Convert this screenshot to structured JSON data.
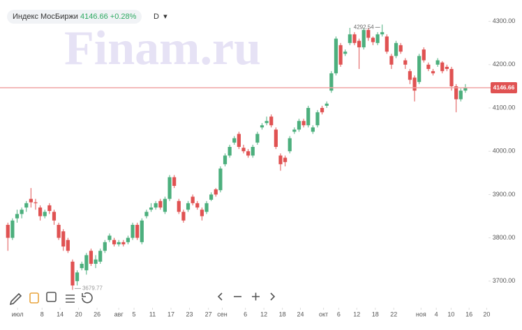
{
  "chart_data": {
    "type": "candlestick",
    "title": "Индекс МосБиржи",
    "change": "+0.28%",
    "interval": "D",
    "watermark": "Finam.ru",
    "up_color": "#4caf7d",
    "down_color": "#e05252",
    "last_line_color": "#f1a3a3",
    "ylim": [
      3645,
      4330
    ],
    "yticks": [
      {
        "value": 3700,
        "label": "3700.00"
      },
      {
        "value": 3800,
        "label": "3800.00"
      },
      {
        "value": 3900,
        "label": "3900.00"
      },
      {
        "value": 4000,
        "label": "4000.00"
      },
      {
        "value": 4100,
        "label": "4100.00"
      },
      {
        "value": 4200,
        "label": "4200.00"
      },
      {
        "value": 4300,
        "label": "4300.00"
      }
    ],
    "xlim": [
      -1.7,
      104
    ],
    "xticks": [
      {
        "value": 2.1,
        "label": "июл"
      },
      {
        "value": 7.4,
        "label": "8"
      },
      {
        "value": 11.3,
        "label": "14"
      },
      {
        "value": 15.3,
        "label": "20"
      },
      {
        "value": 19.3,
        "label": "26"
      },
      {
        "value": 24,
        "label": "авг"
      },
      {
        "value": 27.3,
        "label": "5"
      },
      {
        "value": 31.3,
        "label": "11"
      },
      {
        "value": 35.3,
        "label": "17"
      },
      {
        "value": 39.3,
        "label": "23"
      },
      {
        "value": 43.4,
        "label": "27"
      },
      {
        "value": 46.4,
        "label": "сен"
      },
      {
        "value": 51.4,
        "label": "6"
      },
      {
        "value": 55.4,
        "label": "12"
      },
      {
        "value": 59.4,
        "label": "18"
      },
      {
        "value": 63.3,
        "label": "24"
      },
      {
        "value": 68.3,
        "label": "окт"
      },
      {
        "value": 71.6,
        "label": "6"
      },
      {
        "value": 75.5,
        "label": "12"
      },
      {
        "value": 79.5,
        "label": "18"
      },
      {
        "value": 83.5,
        "label": "22"
      },
      {
        "value": 89.4,
        "label": "ноя"
      },
      {
        "value": 92.7,
        "label": "4"
      },
      {
        "value": 95.9,
        "label": "10"
      },
      {
        "value": 99.8,
        "label": "16"
      },
      {
        "value": 103.6,
        "label": "20"
      }
    ],
    "open": [
      3830,
      3800,
      3845,
      3855,
      3870,
      3890,
      3882,
      3870,
      3850,
      3875,
      3860,
      3830,
      3815,
      3795,
      3745,
      3700,
      3730,
      3725,
      3770,
      3740,
      3745,
      3770,
      3795,
      3795,
      3785,
      3790,
      3790,
      3800,
      3830,
      3790,
      3850,
      3865,
      3870,
      3885,
      3860,
      3890,
      3940,
      3885,
      3860,
      3865,
      3895,
      3880,
      3865,
      3860,
      3888,
      3912,
      3910,
      3970,
      3990,
      4020,
      4040,
      4008,
      4000,
      3990,
      4020,
      4055,
      4065,
      4080,
      4050,
      3990,
      3985,
      4000,
      4045,
      4050,
      4070,
      4060,
      4045,
      4060,
      4100,
      4105,
      4140,
      4180,
      4245,
      4225,
      4250,
      4270,
      4255,
      4240,
      4280,
      4262,
      4250,
      4270,
      4265,
      4220,
      4220,
      4245,
      4210,
      4185,
      4170,
      4160,
      4235,
      4200,
      4185,
      4200,
      4205,
      4195,
      4190,
      4150,
      4120,
      4140
    ],
    "high": [
      3835,
      3845,
      3865,
      3870,
      3885,
      3915,
      3890,
      3875,
      3865,
      3880,
      3865,
      3835,
      3820,
      3800,
      3750,
      3725,
      3745,
      3765,
      3775,
      3760,
      3775,
      3795,
      3810,
      3800,
      3795,
      3795,
      3805,
      3835,
      3835,
      3845,
      3865,
      3880,
      3885,
      3890,
      3895,
      3945,
      3945,
      3890,
      3865,
      3885,
      3900,
      3885,
      3870,
      3885,
      3905,
      3915,
      3965,
      3995,
      4015,
      4035,
      4045,
      4015,
      4005,
      4015,
      4045,
      4065,
      4080,
      4085,
      4055,
      3995,
      3990,
      4035,
      4055,
      4075,
      4075,
      4105,
      4060,
      4095,
      4105,
      4115,
      4185,
      4265,
      4250,
      4235,
      4285,
      4275,
      4260,
      4285,
      4285,
      4265,
      4275,
      4292.54,
      4270,
      4225,
      4255,
      4250,
      4215,
      4190,
      4175,
      4225,
      4240,
      4205,
      4190,
      4215,
      4208,
      4200,
      4195,
      4155,
      4145,
      4155
    ],
    "low": [
      3770,
      3795,
      3835,
      3845,
      3860,
      3870,
      3865,
      3840,
      3845,
      3855,
      3830,
      3795,
      3770,
      3765,
      3679.77,
      3690,
      3725,
      3715,
      3735,
      3730,
      3740,
      3765,
      3790,
      3780,
      3780,
      3780,
      3785,
      3795,
      3795,
      3785,
      3845,
      3860,
      3865,
      3865,
      3855,
      3885,
      3915,
      3855,
      3835,
      3860,
      3875,
      3865,
      3840,
      3855,
      3885,
      3895,
      3905,
      3965,
      3985,
      4015,
      4005,
      3995,
      3985,
      3985,
      4015,
      4050,
      4060,
      4055,
      4005,
      3955,
      3965,
      3995,
      4040,
      4045,
      4055,
      4055,
      4040,
      4055,
      4085,
      4100,
      4135,
      4175,
      4195,
      4220,
      4245,
      4245,
      4190,
      4235,
      4255,
      4245,
      4245,
      4265,
      4225,
      4190,
      4215,
      4225,
      4190,
      4155,
      4115,
      4155,
      4205,
      4185,
      4175,
      4195,
      4180,
      4185,
      4140,
      4090,
      4115,
      4135
    ],
    "close": [
      3800,
      3840,
      3855,
      3865,
      3880,
      3882,
      3880,
      3850,
      3860,
      3862,
      3840,
      3800,
      3780,
      3770,
      3690,
      3720,
      3740,
      3760,
      3740,
      3750,
      3770,
      3790,
      3805,
      3785,
      3790,
      3785,
      3800,
      3830,
      3800,
      3840,
      3860,
      3870,
      3880,
      3870,
      3890,
      3940,
      3920,
      3860,
      3840,
      3880,
      3880,
      3870,
      3850,
      3880,
      3900,
      3900,
      3960,
      3990,
      4010,
      4030,
      4010,
      4000,
      3990,
      4010,
      4040,
      4060,
      4070,
      4060,
      4010,
      3970,
      3975,
      4030,
      4050,
      4070,
      4060,
      4100,
      4055,
      4090,
      4090,
      4110,
      4180,
      4260,
      4200,
      4230,
      4270,
      4250,
      4240,
      4280,
      4262,
      4252,
      4270,
      4275,
      4230,
      4200,
      4250,
      4230,
      4200,
      4165,
      4140,
      4220,
      4210,
      4190,
      4180,
      4210,
      4185,
      4190,
      4150,
      4120,
      4140,
      4146.66
    ]
  }
}
